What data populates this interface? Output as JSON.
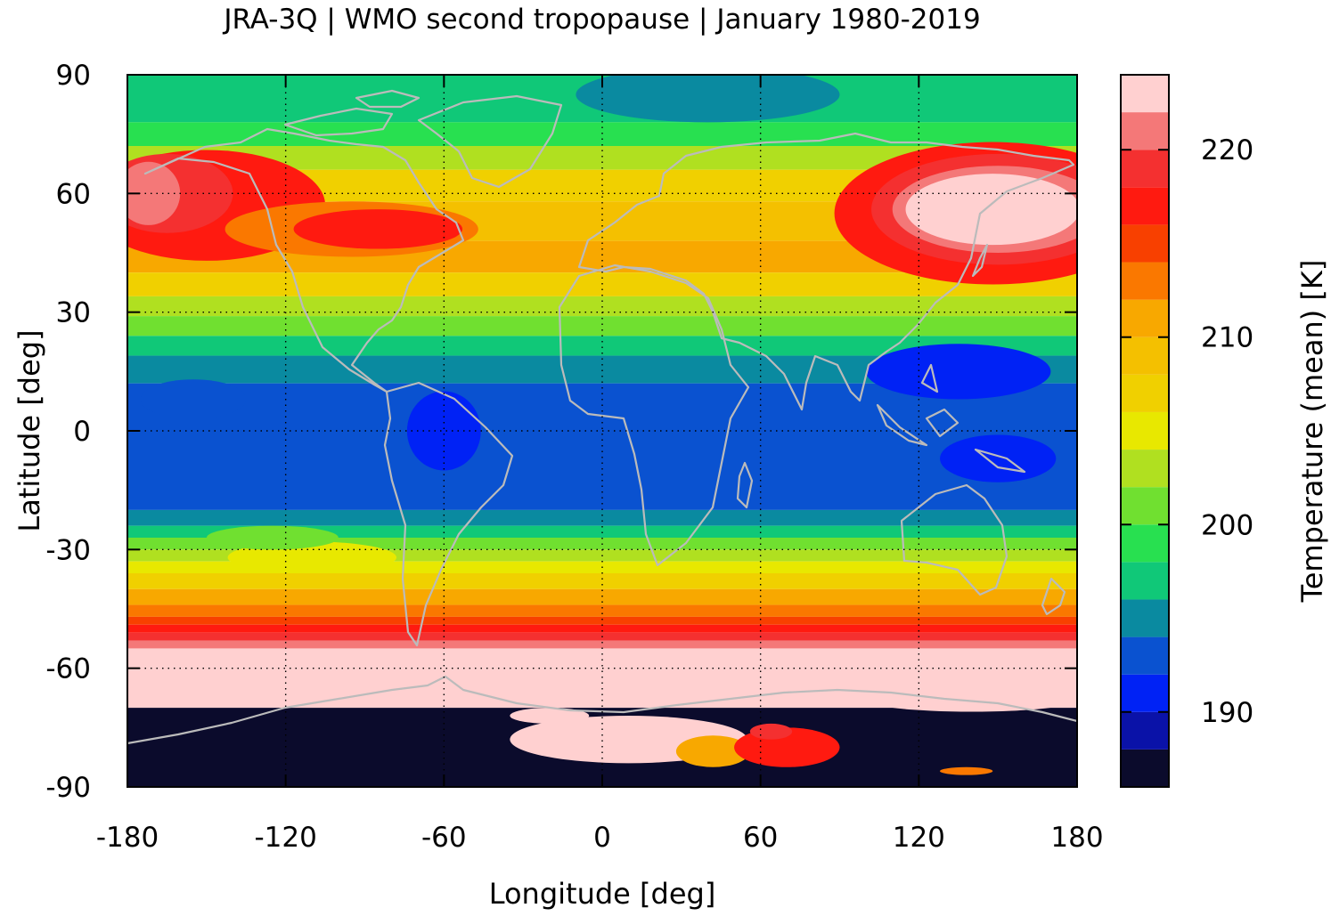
{
  "chart_data": {
    "type": "heatmap",
    "title": "JRA-3Q | WMO second tropopause | January 1980-2019",
    "xlabel": "Longitude [deg]",
    "ylabel": "Latitude [deg]",
    "colorbar_label": "Temperature (mean) [K]",
    "xlim": [
      -180,
      180
    ],
    "ylim": [
      -90,
      90
    ],
    "x_ticks": [
      -180,
      -120,
      -60,
      0,
      60,
      120,
      180
    ],
    "y_ticks": [
      90,
      60,
      30,
      0,
      -30,
      -60,
      -90
    ],
    "colorbar_range": [
      186,
      224
    ],
    "colorbar_ticks": [
      190,
      200,
      210,
      220
    ],
    "colorbar_levels": [
      {
        "from": 186,
        "to": 188,
        "color": "#0b0b2c"
      },
      {
        "from": 188,
        "to": 190,
        "color": "#0a12a8"
      },
      {
        "from": 190,
        "to": 192,
        "color": "#0022f5"
      },
      {
        "from": 192,
        "to": 194,
        "color": "#0a52d0"
      },
      {
        "from": 194,
        "to": 196,
        "color": "#0a8aa0"
      },
      {
        "from": 196,
        "to": 198,
        "color": "#10c878"
      },
      {
        "from": 198,
        "to": 200,
        "color": "#28e050"
      },
      {
        "from": 200,
        "to": 202,
        "color": "#70e030"
      },
      {
        "from": 202,
        "to": 204,
        "color": "#b0e020"
      },
      {
        "from": 204,
        "to": 206,
        "color": "#e8e800"
      },
      {
        "from": 206,
        "to": 208,
        "color": "#f0d000"
      },
      {
        "from": 208,
        "to": 210,
        "color": "#f4c000"
      },
      {
        "from": 210,
        "to": 212,
        "color": "#f8a800"
      },
      {
        "from": 212,
        "to": 214,
        "color": "#fa7800"
      },
      {
        "from": 214,
        "to": 216,
        "color": "#f84000"
      },
      {
        "from": 216,
        "to": 218,
        "color": "#ff1a10"
      },
      {
        "from": 218,
        "to": 220,
        "color": "#f43030"
      },
      {
        "from": 220,
        "to": 222,
        "color": "#f47878"
      },
      {
        "from": 222,
        "to": 224,
        "color": "#ffd0d0"
      }
    ],
    "grid": true,
    "grid_x": [
      -120,
      -60,
      0,
      60,
      120
    ],
    "grid_y": [
      60,
      30,
      0,
      -30,
      -60
    ],
    "coastline_color": "#bbbbbb",
    "zonal_bands": [
      {
        "lat": [
          78,
          90
        ],
        "K": 197
      },
      {
        "lat": [
          72,
          78
        ],
        "K": 199
      },
      {
        "lat": [
          66,
          72
        ],
        "K": 202
      },
      {
        "lat": [
          58,
          66
        ],
        "K": 206
      },
      {
        "lat": [
          48,
          58
        ],
        "K": 209
      },
      {
        "lat": [
          40,
          48
        ],
        "K": 210
      },
      {
        "lat": [
          34,
          40
        ],
        "K": 206
      },
      {
        "lat": [
          29,
          34
        ],
        "K": 203
      },
      {
        "lat": [
          24,
          29
        ],
        "K": 200
      },
      {
        "lat": [
          19,
          24
        ],
        "K": 197
      },
      {
        "lat": [
          12,
          19
        ],
        "K": 195
      },
      {
        "lat": [
          -20,
          12
        ],
        "K": 193
      },
      {
        "lat": [
          -24,
          -20
        ],
        "K": 195
      },
      {
        "lat": [
          -27,
          -24
        ],
        "K": 197
      },
      {
        "lat": [
          -30,
          -27
        ],
        "K": 200
      },
      {
        "lat": [
          -33,
          -30
        ],
        "K": 202
      },
      {
        "lat": [
          -36,
          -33
        ],
        "K": 205
      },
      {
        "lat": [
          -40,
          -36
        ],
        "K": 207
      },
      {
        "lat": [
          -44,
          -40
        ],
        "K": 210
      },
      {
        "lat": [
          -47,
          -44
        ],
        "K": 213
      },
      {
        "lat": [
          -49,
          -47
        ],
        "K": 215
      },
      {
        "lat": [
          -51,
          -49
        ],
        "K": 217
      },
      {
        "lat": [
          -53,
          -51
        ],
        "K": 219
      },
      {
        "lat": [
          -55,
          -53
        ],
        "K": 221
      },
      {
        "lat": [
          -70,
          -55
        ],
        "K": 223
      },
      {
        "lat": [
          -90,
          -70
        ],
        "K": 187
      }
    ],
    "features": [
      {
        "lon": -150,
        "lat": 57,
        "rlon": 45,
        "rlat": 14,
        "K": 216
      },
      {
        "lon": -95,
        "lat": 51,
        "rlon": 48,
        "rlat": 7,
        "K": 212
      },
      {
        "lon": -85,
        "lat": 51,
        "rlon": 32,
        "rlat": 5,
        "K": 216
      },
      {
        "lon": -165,
        "lat": 60,
        "rlon": 25,
        "rlat": 10,
        "K": 219
      },
      {
        "lon": -172,
        "lat": 60,
        "rlon": 12,
        "rlat": 8,
        "K": 221
      },
      {
        "lon": 148,
        "lat": 55,
        "rlon": 60,
        "rlat": 18,
        "K": 216
      },
      {
        "lon": 150,
        "lat": 56,
        "rlon": 48,
        "rlat": 14,
        "K": 219
      },
      {
        "lon": 150,
        "lat": 56,
        "rlon": 40,
        "rlat": 11,
        "K": 221
      },
      {
        "lon": 148,
        "lat": 56,
        "rlon": 33,
        "rlat": 9,
        "K": 223
      },
      {
        "lon": 40,
        "lat": 85,
        "rlon": 50,
        "rlat": 7,
        "K": 195
      },
      {
        "lon": 135,
        "lat": 15,
        "rlon": 35,
        "rlat": 7,
        "K": 191
      },
      {
        "lon": -155,
        "lat": 8,
        "rlon": 20,
        "rlat": 5,
        "K": 192
      },
      {
        "lon": -60,
        "lat": 0,
        "rlon": 14,
        "rlat": 10,
        "K": 191
      },
      {
        "lon": 150,
        "lat": -7,
        "rlon": 22,
        "rlat": 6,
        "K": 191
      },
      {
        "lon": -110,
        "lat": -32,
        "rlon": 32,
        "rlat": 4,
        "K": 204
      },
      {
        "lon": -125,
        "lat": -27,
        "rlon": 25,
        "rlat": 3,
        "K": 200
      },
      {
        "lon": 10,
        "lat": -78,
        "rlon": 45,
        "rlat": 6,
        "K": 223
      },
      {
        "lon": 140,
        "lat": -68,
        "rlon": 40,
        "rlat": 3,
        "K": 223
      },
      {
        "lon": -20,
        "lat": -72,
        "rlon": 15,
        "rlat": 2,
        "K": 223
      },
      {
        "lon": 42,
        "lat": -81,
        "rlon": 14,
        "rlat": 4,
        "K": 211
      },
      {
        "lon": 70,
        "lat": -80,
        "rlon": 20,
        "rlat": 5,
        "K": 216
      },
      {
        "lon": 64,
        "lat": -76,
        "rlon": 8,
        "rlat": 2,
        "K": 218
      },
      {
        "lon": 138,
        "lat": -86,
        "rlon": 10,
        "rlat": 1,
        "K": 213
      }
    ]
  }
}
